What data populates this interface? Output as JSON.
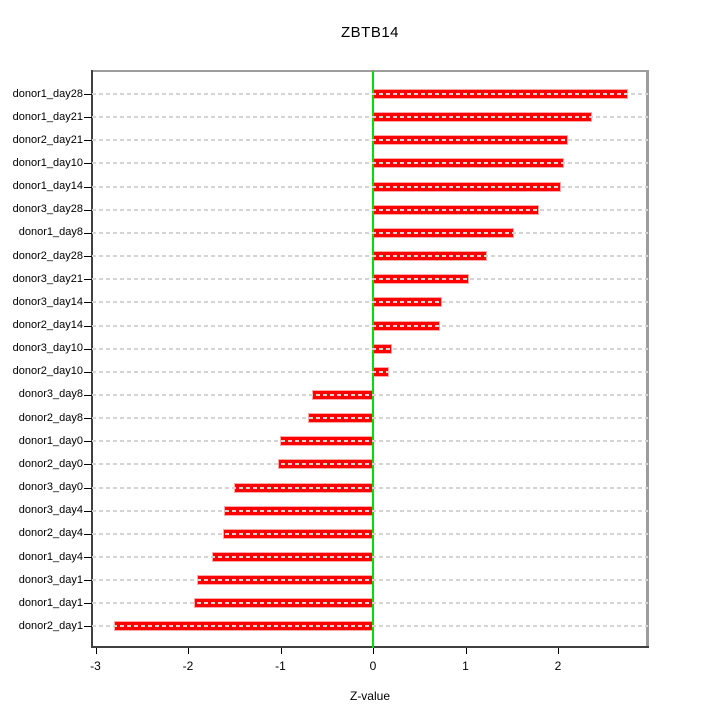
{
  "title": "ZBTB14",
  "x_axis_title": "Z-value",
  "chart_data": {
    "type": "bar",
    "orientation": "horizontal",
    "title": "ZBTB14",
    "xlabel": "Z-value",
    "ylabel": "",
    "xlim": [
      -3.04,
      2.97
    ],
    "xticks": [
      -3,
      -2,
      -1,
      0,
      1,
      2
    ],
    "xtick_labels": [
      "-3",
      "-2",
      "-1",
      "0",
      "1",
      "2"
    ],
    "grid": true,
    "legend": null,
    "zero_line": 0,
    "categories": [
      "donor1_day28",
      "donor1_day21",
      "donor2_day21",
      "donor1_day10",
      "donor1_day14",
      "donor3_day28",
      "donor1_day8",
      "donor2_day28",
      "donor3_day21",
      "donor3_day14",
      "donor2_day14",
      "donor3_day10",
      "donor2_day10",
      "donor3_day8",
      "donor2_day8",
      "donor1_day0",
      "donor2_day0",
      "donor3_day0",
      "donor3_day4",
      "donor2_day4",
      "donor1_day4",
      "donor3_day1",
      "donor1_day1",
      "donor2_day1"
    ],
    "values": [
      2.76,
      2.37,
      2.11,
      2.06,
      2.03,
      1.79,
      1.52,
      1.23,
      1.04,
      0.75,
      0.72,
      0.2,
      0.17,
      -0.66,
      -0.7,
      -1.01,
      -1.03,
      -1.5,
      -1.61,
      -1.62,
      -1.74,
      -1.9,
      -1.94,
      -2.8
    ],
    "colors": {
      "bar_fill": "#ff0000",
      "bar_border": "#ffa8a8",
      "grid": "#d4d4d4",
      "zero_line": "#00e000",
      "box": "#9c9c9c",
      "axis": "#404040",
      "tick": "#000000",
      "text": "#000000"
    }
  }
}
